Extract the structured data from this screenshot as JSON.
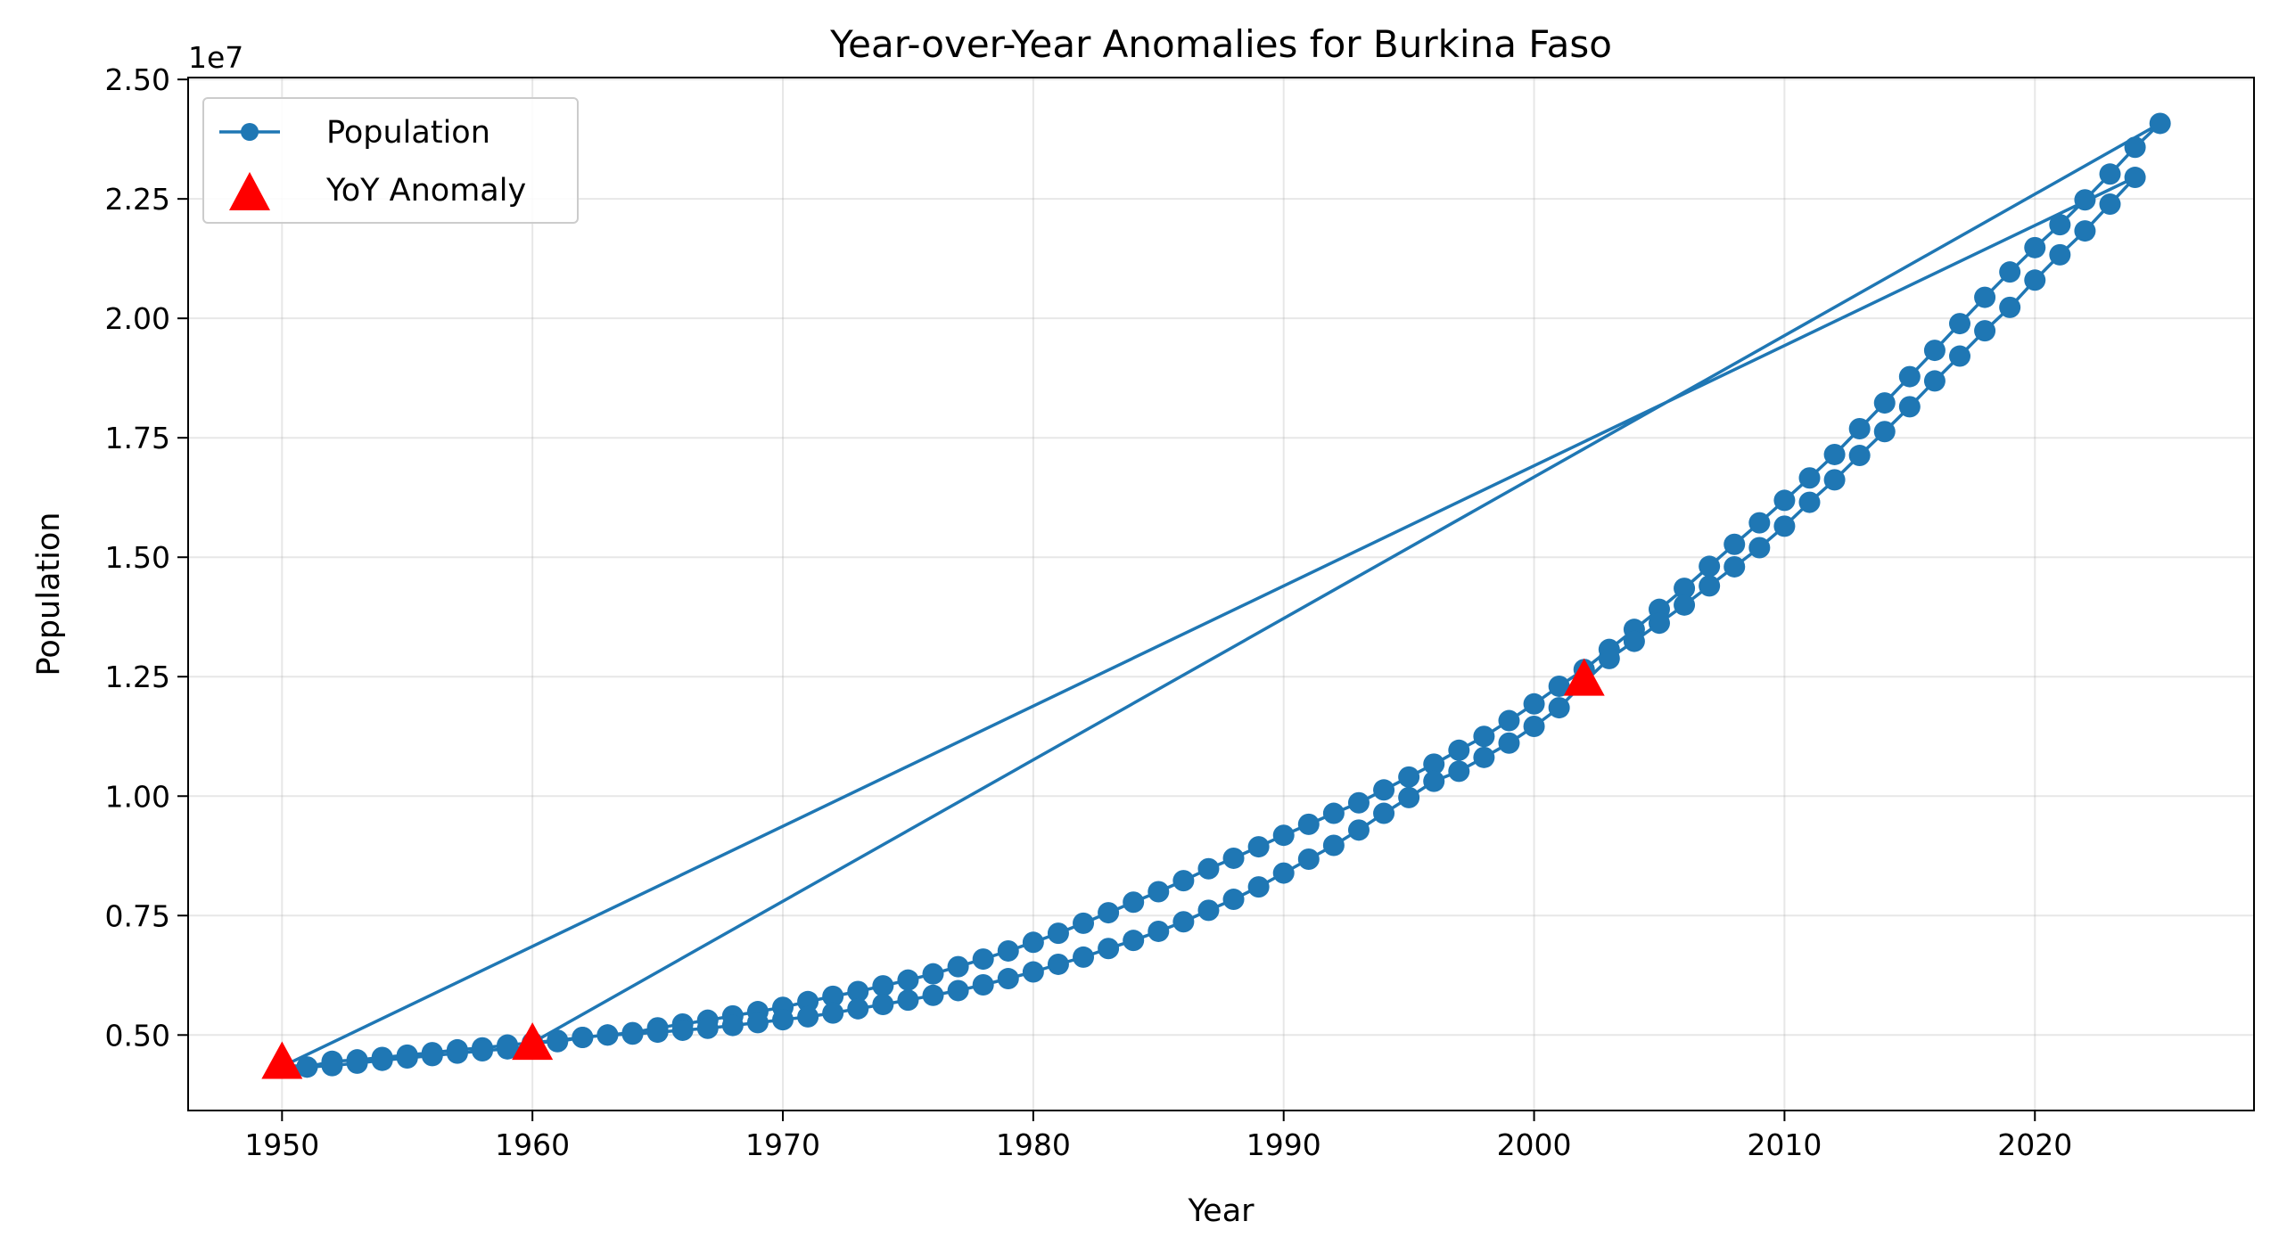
{
  "chart_data": {
    "type": "line",
    "title": "Year-over-Year Anomalies for Burkina Faso",
    "xlabel": "Year",
    "ylabel": "Population",
    "y_offset_label": "1e7",
    "y_scale": 10000000,
    "xlim": [
      1946.25,
      2028.75
    ],
    "ylim": [
      3420000,
      25040000
    ],
    "x_ticks": [
      1950,
      1960,
      1970,
      1980,
      1990,
      2000,
      2010,
      2020
    ],
    "x_tick_labels": [
      "1950",
      "1960",
      "1970",
      "1980",
      "1990",
      "2000",
      "2010",
      "2020"
    ],
    "y_ticks": [
      5000000,
      7500000,
      10000000,
      12500000,
      15000000,
      17500000,
      20000000,
      22500000,
      25000000
    ],
    "y_tick_labels": [
      "0.50",
      "0.75",
      "1.00",
      "1.25",
      "1.50",
      "1.75",
      "2.00",
      "2.25",
      "2.50"
    ],
    "grid": true,
    "legend_position": "top-left",
    "colors": {
      "line": "#1f77b4",
      "anomaly": "#ff0000"
    },
    "series": [
      {
        "name": "Population",
        "style": "line-with-markers",
        "x": [
          1950,
          1951,
          1952,
          1953,
          1954,
          1955,
          1956,
          1957,
          1958,
          1959,
          1960,
          1961,
          1962,
          1963,
          1964,
          1965,
          1966,
          1967,
          1968,
          1969,
          1970,
          1971,
          1972,
          1973,
          1974,
          1975,
          1976,
          1977,
          1978,
          1979,
          1980,
          1981,
          1982,
          1983,
          1984,
          1985,
          1986,
          1987,
          1988,
          1989,
          1990,
          1991,
          1992,
          1993,
          1994,
          1995,
          1996,
          1997,
          1998,
          1999,
          2000,
          2001,
          2002,
          2003,
          2004,
          2005,
          2006,
          2007,
          2008,
          2009,
          2010,
          2011,
          2012,
          2013,
          2014,
          2015,
          2016,
          2017,
          2018,
          2019,
          2020,
          2021,
          2022,
          2023,
          2024,
          2025,
          1960,
          1961,
          1962,
          1963,
          1964,
          1965,
          1966,
          1967,
          1968,
          1969,
          1970,
          1971,
          1972,
          1973,
          1974,
          1975,
          1976,
          1977,
          1978,
          1979,
          1980,
          1981,
          1982,
          1983,
          1984,
          1985,
          1986,
          1987,
          1988,
          1989,
          1990,
          1991,
          1992,
          1993,
          1994,
          1995,
          1996,
          1997,
          1998,
          1999,
          2000,
          2001,
          2002,
          2003,
          2004,
          2005,
          2006,
          2007,
          2008,
          2009,
          2010,
          2011,
          2012,
          2013,
          2014,
          2015,
          2016,
          2017,
          2018,
          2019,
          2020,
          2021,
          2022,
          2023,
          2024,
          1950,
          1951,
          1952,
          1953,
          1954,
          1955,
          1956,
          1957,
          1958,
          1959,
          1960
        ],
        "y": [
          4380000,
          4330000,
          4450000,
          4480000,
          4530000,
          4580000,
          4630000,
          4690000,
          4730000,
          4790000,
          4840000,
          4890000,
          4950000,
          5000000,
          5050000,
          5150000,
          5230000,
          5310000,
          5400000,
          5490000,
          5580000,
          5700000,
          5810000,
          5910000,
          6030000,
          6150000,
          6280000,
          6430000,
          6590000,
          6760000,
          6940000,
          7130000,
          7340000,
          7560000,
          7780000,
          8000000,
          8230000,
          8480000,
          8700000,
          8940000,
          9180000,
          9410000,
          9640000,
          9860000,
          10130000,
          10400000,
          10670000,
          10960000,
          11250000,
          11580000,
          11930000,
          12300000,
          12650000,
          13070000,
          13490000,
          13910000,
          14350000,
          14810000,
          15270000,
          15720000,
          16190000,
          16660000,
          17150000,
          17690000,
          18230000,
          18780000,
          19330000,
          19890000,
          20440000,
          20970000,
          21480000,
          21960000,
          22480000,
          23020000,
          23580000,
          24080000,
          4840000,
          4860000,
          4950000,
          5000000,
          5020000,
          5060000,
          5100000,
          5140000,
          5200000,
          5260000,
          5320000,
          5380000,
          5460000,
          5550000,
          5640000,
          5730000,
          5830000,
          5930000,
          6050000,
          6180000,
          6320000,
          6480000,
          6630000,
          6810000,
          6980000,
          7170000,
          7370000,
          7610000,
          7840000,
          8100000,
          8390000,
          8680000,
          8970000,
          9290000,
          9640000,
          9970000,
          10310000,
          10520000,
          10810000,
          11110000,
          11460000,
          11850000,
          12380000,
          12880000,
          13240000,
          13620000,
          14000000,
          14400000,
          14800000,
          15200000,
          15650000,
          16150000,
          16620000,
          17130000,
          17630000,
          18150000,
          18690000,
          19210000,
          19740000,
          20230000,
          20800000,
          21330000,
          21830000,
          22390000,
          22950000,
          4340000,
          4330000,
          4360000,
          4410000,
          4470000,
          4520000,
          4570000,
          4620000,
          4670000,
          4710000,
          4780000
        ]
      },
      {
        "name": "YoY Anomaly",
        "style": "markers-triangle",
        "x": [
          1950,
          1960,
          2002
        ],
        "y": [
          4380000,
          4780000,
          12400000
        ]
      }
    ]
  }
}
